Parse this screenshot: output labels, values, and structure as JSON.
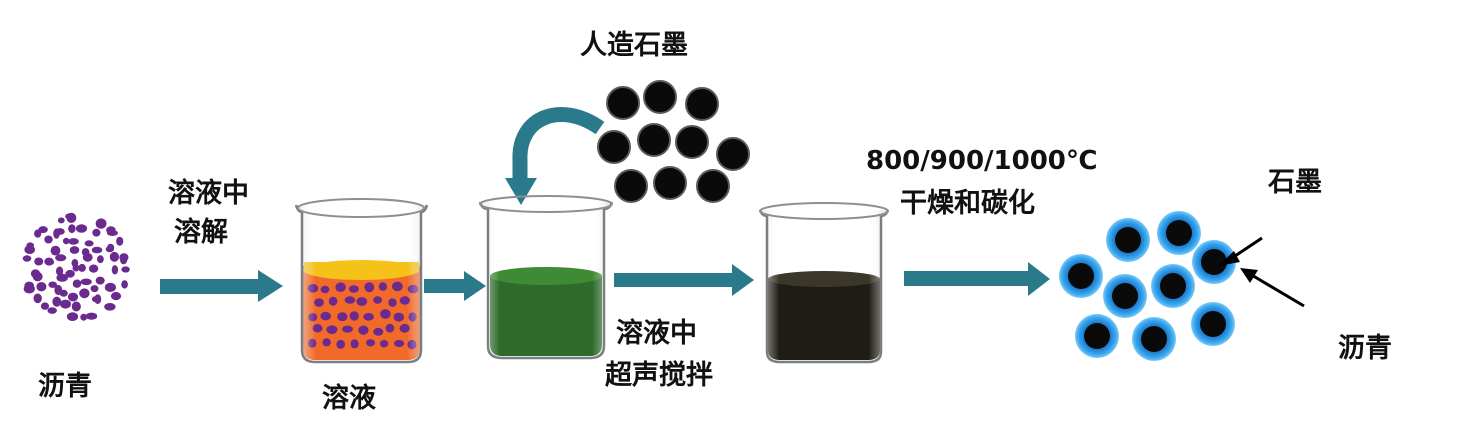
{
  "labels": {
    "pitch_source": "沥青",
    "dissolve_line1": "溶液中",
    "dissolve_line2": "溶解",
    "solution": "溶液",
    "artificial_graphite": "人造石墨",
    "stir_line1": "溶液中",
    "stir_line2": "超声搅拌",
    "temp": "800/900/1000℃",
    "dry_carbonize": "干燥和碳化",
    "graphite_core": "石墨",
    "pitch_shell": "沥青"
  },
  "colors": {
    "arrow": "#2b7a8c",
    "pitch_particle": "#6a2a8e",
    "solution_top": "#f5c21a",
    "solution_body": "#f26a2a",
    "green_liquid": "#2e6a2a",
    "dark_liquid": "#1e1c14",
    "graphite": "#0a0a0a",
    "coating": "#3aa3e8"
  }
}
